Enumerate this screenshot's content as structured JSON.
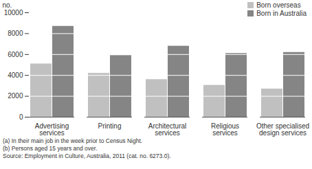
{
  "chart_data": {
    "type": "bar",
    "categories": [
      "Advertising services",
      "Printing",
      "Architectural services",
      "Religious services",
      "Other specialised design services"
    ],
    "series": [
      {
        "name": "Born overseas",
        "color": "#c0c0c0",
        "values": [
          5100,
          4200,
          3600,
          3050,
          2700
        ]
      },
      {
        "name": "Born in Australia",
        "color": "#858585",
        "values": [
          8700,
          5900,
          6800,
          6100,
          6200
        ]
      }
    ],
    "y_label": "no.",
    "ylim": [
      0,
      10000
    ],
    "yticks": [
      0,
      2000,
      4000,
      6000,
      8000,
      10000
    ],
    "grid": true,
    "legend": "top-right",
    "notes": [
      "(a) In their main job in the week prior to Census Night.",
      "(b) Persons aged 15 years and over.",
      "Source: Employment in Culture, Australia, 2011 (cat. no. 6273.0)."
    ]
  }
}
